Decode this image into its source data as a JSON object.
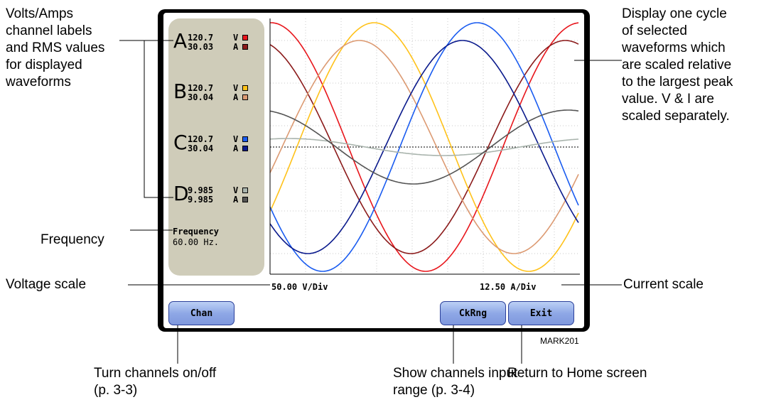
{
  "annotations": {
    "labels_line1": "Volts/Amps",
    "labels_line2": "channel labels",
    "labels_line3": "and RMS values",
    "labels_line4": "for displayed",
    "labels_line5": "waveforms",
    "frequency": "Frequency",
    "voltage_scale": "Voltage scale",
    "current_scale": "Current scale",
    "display_line1": "Display one cycle",
    "display_line2": "of selected",
    "display_line3": "waveforms which",
    "display_line4": "are scaled relative",
    "display_line5": "to the largest peak",
    "display_line6": "value. V & I are",
    "display_line7": "scaled separately.",
    "turn_line1": "Turn channels on/off",
    "turn_line2": "(p. 3-3)",
    "show_line1": "Show channels input",
    "show_line2": "range (p. 3-4)",
    "return_line1": "Return to Home screen",
    "mark": "MARK201"
  },
  "channels": [
    {
      "letter": "A",
      "volts": "120.7",
      "amps": "30.03",
      "v_unit": "V",
      "a_unit": "A",
      "v_color": "#e8161c",
      "a_color": "#8b1a1a"
    },
    {
      "letter": "B",
      "volts": "120.7",
      "amps": "30.04",
      "v_unit": "V",
      "a_unit": "A",
      "v_color": "#ffc21a",
      "a_color": "#dc9a72"
    },
    {
      "letter": "C",
      "volts": "120.7",
      "amps": "30.04",
      "v_unit": "V",
      "a_unit": "A",
      "v_color": "#1a5cf0",
      "a_color": "#0a1a8c"
    },
    {
      "letter": "D",
      "volts": "9.985",
      "amps": "9.985",
      "v_unit": "V",
      "a_unit": "A",
      "v_color": "#a9b4ad",
      "a_color": "#555555"
    }
  ],
  "frequency": {
    "label": "Frequency",
    "value": "60.00 Hz."
  },
  "scales": {
    "voltage": "50.00 V/Div",
    "current": "12.50 A/Div"
  },
  "buttons": {
    "chan": "Chan",
    "ckrng": "CkRng",
    "exit": "Exit"
  },
  "waveform_colors": {
    "va": "#e8161c",
    "ia": "#8b1a1a",
    "vb": "#ffc21a",
    "ib": "#dc9a72",
    "vc": "#1a5cf0",
    "ic": "#0a1a8c",
    "vd": "#a9b4ad",
    "id": "#555555"
  }
}
